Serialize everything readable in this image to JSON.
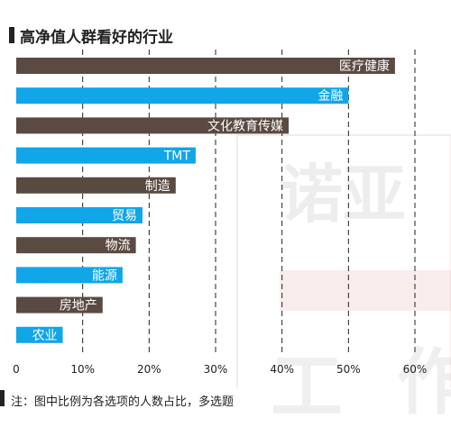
{
  "chart_data": {
    "type": "bar",
    "orientation": "horizontal",
    "title": "高净值人群看好的行业",
    "categories": [
      "医疗健康",
      "金融",
      "文化教育传媒",
      "TMT",
      "制造",
      "贸易",
      "物流",
      "能源",
      "房地产",
      "农业"
    ],
    "values": [
      57,
      50,
      41,
      27,
      24,
      19,
      18,
      16,
      13,
      7
    ],
    "bar_colors": [
      "#5b4a42",
      "#10a6e8",
      "#5b4a42",
      "#10a6e8",
      "#5b4a42",
      "#10a6e8",
      "#5b4a42",
      "#10a6e8",
      "#5b4a42",
      "#10a6e8"
    ],
    "value_unit": "%",
    "xlim": [
      0,
      60
    ],
    "xticks": [
      0,
      10,
      20,
      30,
      40,
      50,
      60
    ],
    "xtick_labels": [
      "0",
      "10%",
      "20%",
      "30%",
      "40%",
      "50%",
      "60%"
    ],
    "grid": "vertical dashed",
    "xlabel": "",
    "ylabel": ""
  },
  "footnote": "注：图中比例为各选项的人数占比，多选题",
  "watermark": [
    "诺亚",
    "工",
    "作"
  ]
}
